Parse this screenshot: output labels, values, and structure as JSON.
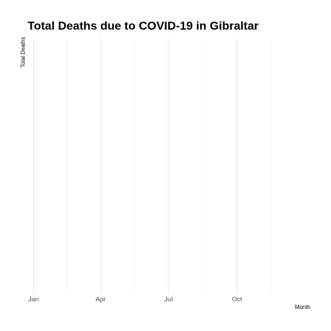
{
  "chart_data": {
    "type": "line",
    "title": "Total Deaths due to COVID-19 in Gibraltar",
    "xlabel": "Month",
    "ylabel": "Total Deaths",
    "x_axis_type": "date",
    "xlim": [
      "2020-12-24",
      "2021-12-31"
    ],
    "x_ticks": [
      {
        "date": "2021-01-01",
        "label": "Jan"
      },
      {
        "date": "2021-04-01",
        "label": "Apr"
      },
      {
        "date": "2021-07-01",
        "label": "Jul"
      },
      {
        "date": "2021-10-01",
        "label": "Oct"
      }
    ],
    "x_minor_ticks": [
      "2021-02-15",
      "2021-05-16",
      "2021-08-16",
      "2021-11-16"
    ],
    "y_ticks": [],
    "series": [],
    "grid": true,
    "legend": "none"
  }
}
